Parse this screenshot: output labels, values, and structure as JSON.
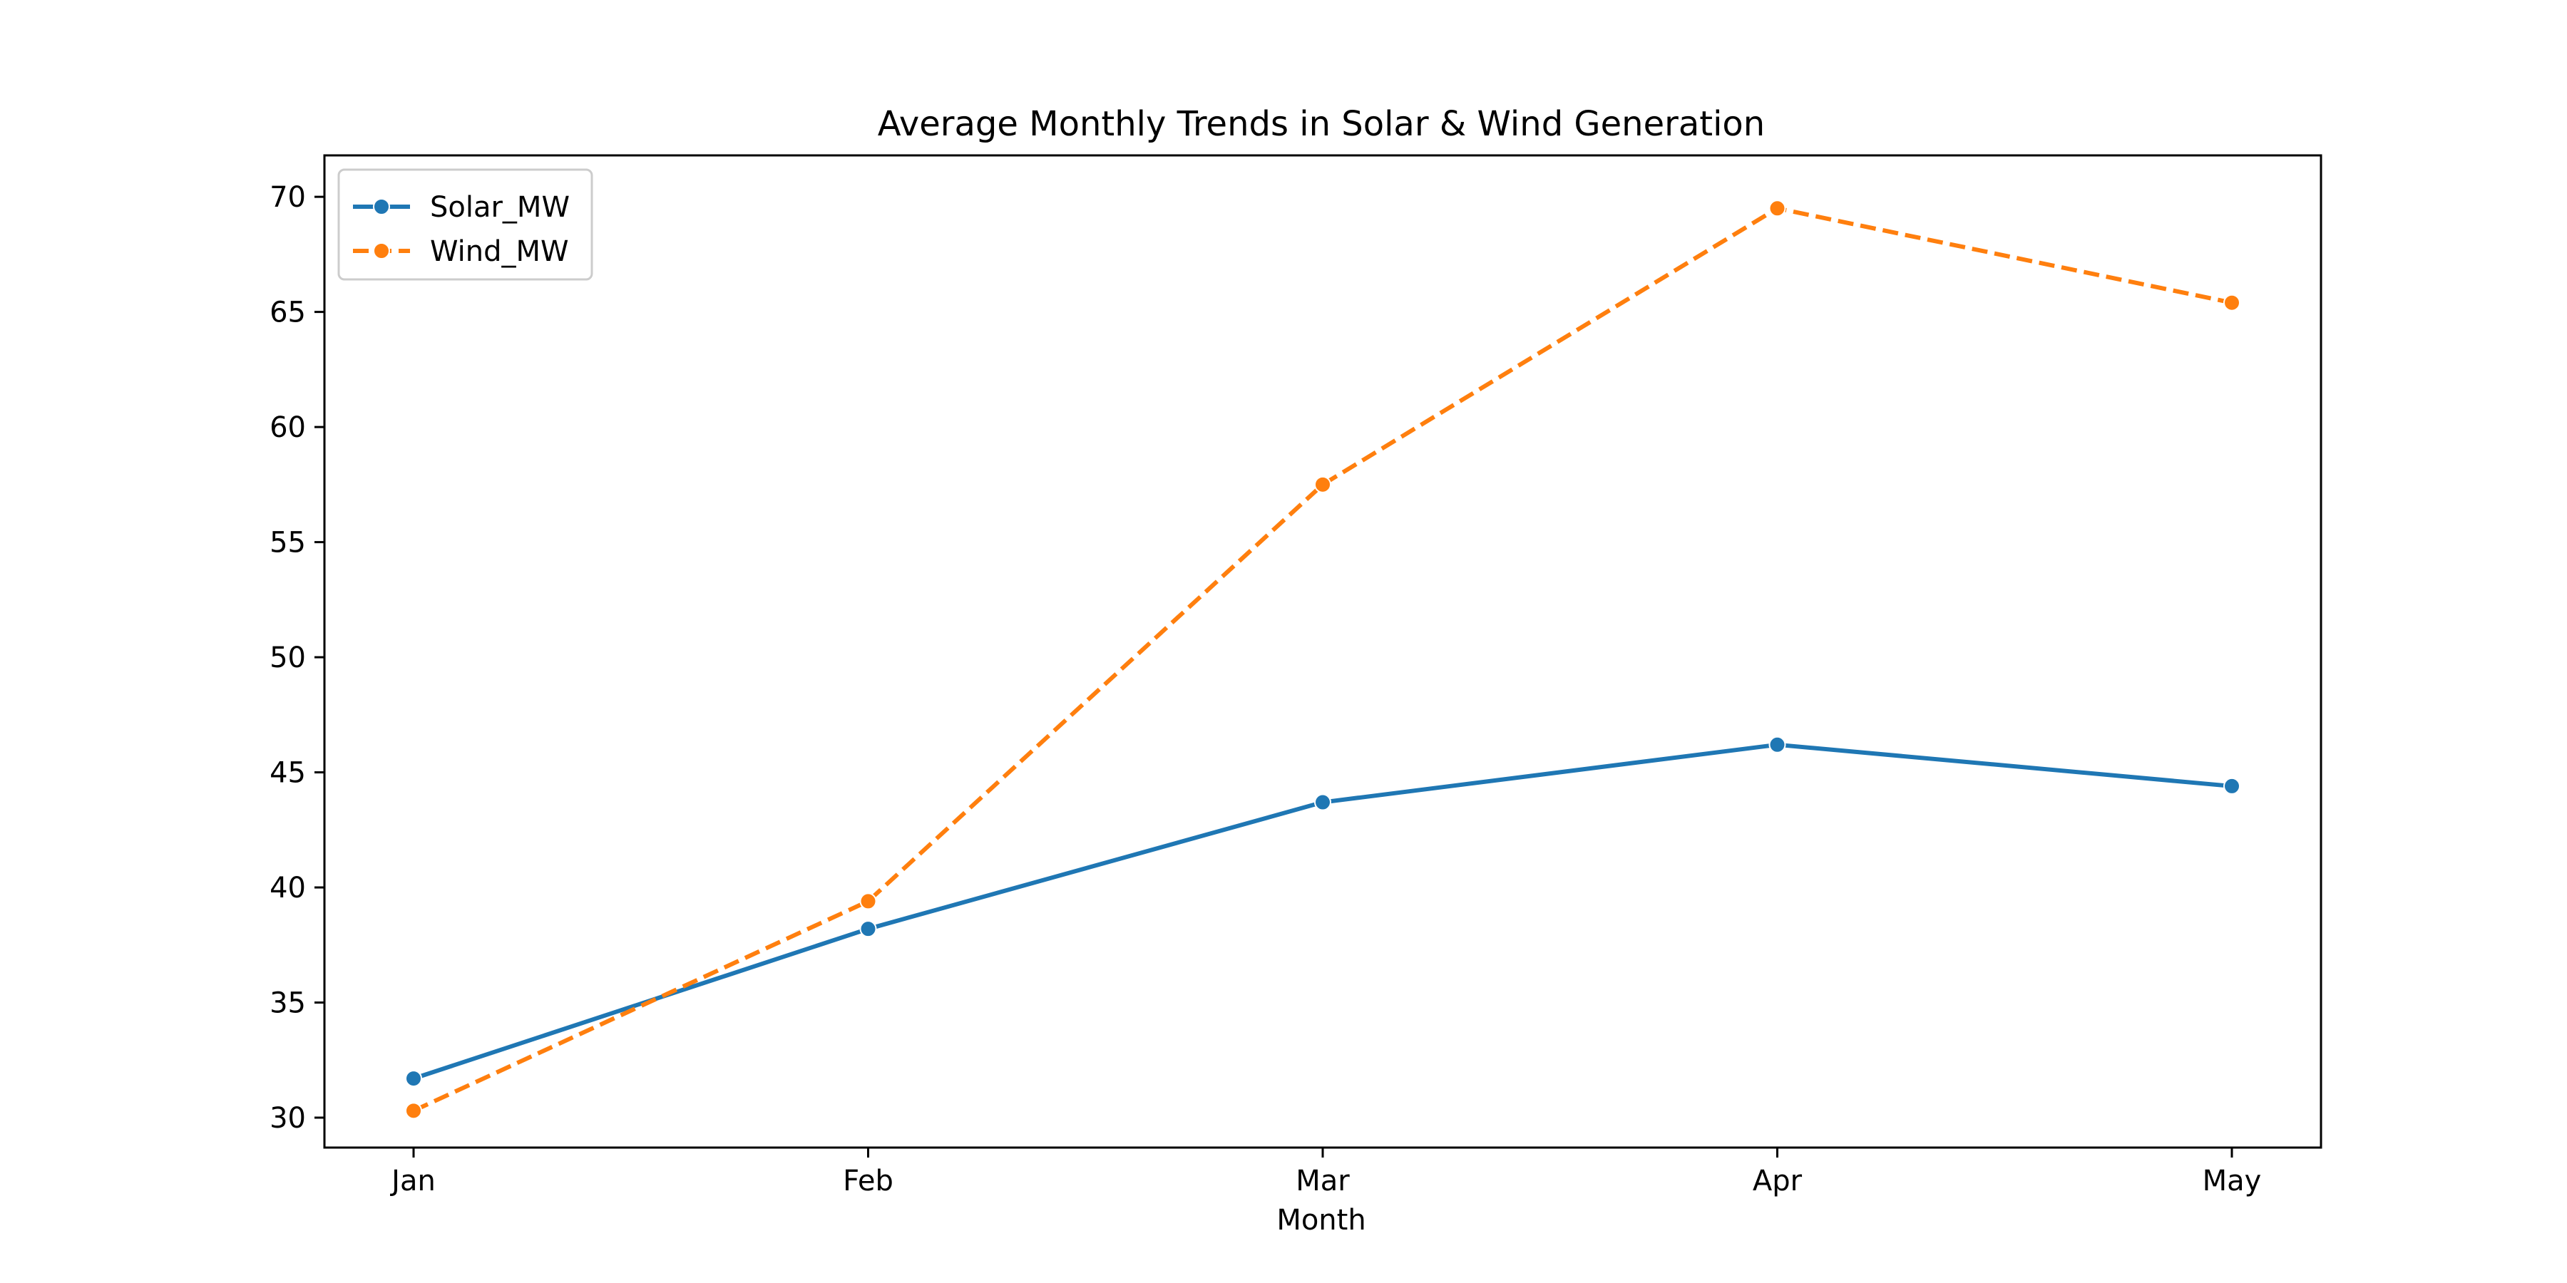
{
  "chart_data": {
    "type": "line",
    "title": "Average Monthly Trends in Solar & Wind Generation",
    "xlabel": "Month",
    "ylabel": "",
    "categories": [
      "Jan",
      "Feb",
      "Mar",
      "Apr",
      "May"
    ],
    "ylim": [
      28.7,
      71.8
    ],
    "yticks": [
      30,
      35,
      40,
      45,
      50,
      55,
      60,
      65,
      70
    ],
    "grid": false,
    "legend_position": "top-left",
    "series": [
      {
        "name": "Solar_MW",
        "color": "#1f77b4",
        "line_style": "solid",
        "marker": "circle",
        "values": [
          31.7,
          38.2,
          43.7,
          46.2,
          44.4
        ]
      },
      {
        "name": "Wind_MW",
        "color": "#ff7f0e",
        "line_style": "dashed",
        "marker": "circle",
        "values": [
          30.3,
          39.4,
          57.5,
          69.5,
          65.4
        ]
      }
    ]
  }
}
